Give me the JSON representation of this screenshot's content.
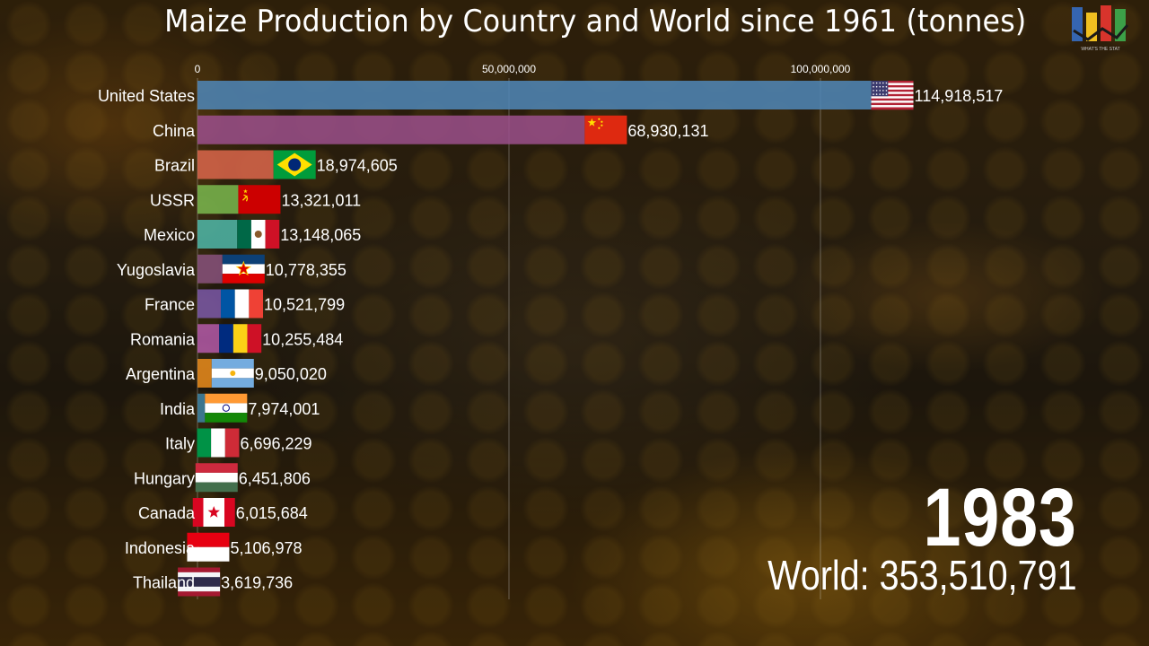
{
  "title": "Maize Production by Country and World since 1961 (tonnes)",
  "year": "1983",
  "world_label": "World: 353,510,791",
  "logo_text": "WHAT'S THE STAT",
  "chart_data": {
    "type": "bar",
    "orientation": "horizontal",
    "title": "Maize Production by Country and World since 1961 (tonnes)",
    "xlim": [
      0,
      115000000
    ],
    "ticks": [
      {
        "value": 0,
        "label": "0"
      },
      {
        "value": 50000000,
        "label": "50,000,000"
      },
      {
        "value": 100000000,
        "label": "100,000,000"
      }
    ],
    "grid": true,
    "bars": [
      {
        "country": "United States",
        "value": 114918517,
        "label": "114,918,517",
        "color": "#4f87b8",
        "flag": "us"
      },
      {
        "country": "China",
        "value": 68930131,
        "label": "68,930,131",
        "color": "#9b4f8a",
        "flag": "cn"
      },
      {
        "country": "Brazil",
        "value": 18974605,
        "label": "18,974,605",
        "color": "#d9654b",
        "flag": "br"
      },
      {
        "country": "USSR",
        "value": 13321011,
        "label": "13,321,011",
        "color": "#7ab84e",
        "flag": "su"
      },
      {
        "country": "Mexico",
        "value": 13148065,
        "label": "13,148,065",
        "color": "#4fb8a8",
        "flag": "mx"
      },
      {
        "country": "Yugoslavia",
        "value": 10778355,
        "label": "10,778,355",
        "color": "#87527c",
        "flag": "yu"
      },
      {
        "country": "France",
        "value": 10521799,
        "label": "10,521,799",
        "color": "#7b58a6",
        "flag": "fr"
      },
      {
        "country": "Romania",
        "value": 10255484,
        "label": "10,255,484",
        "color": "#b35aa8",
        "flag": "ro"
      },
      {
        "country": "Argentina",
        "value": 9050020,
        "label": "9,050,020",
        "color": "#e88a1c",
        "flag": "ar"
      },
      {
        "country": "India",
        "value": 7974001,
        "label": "7,974,001",
        "color": "#3f84a3",
        "flag": "in"
      },
      {
        "country": "Italy",
        "value": 6696229,
        "label": "6,696,229",
        "color": "#e88a12",
        "flag": "it"
      },
      {
        "country": "Hungary",
        "value": 6451806,
        "label": "6,451,806",
        "color": "#6f6a66",
        "flag": "hu"
      },
      {
        "country": "Canada",
        "value": 6015684,
        "label": "6,015,684",
        "color": "#a14a7e",
        "flag": "ca"
      },
      {
        "country": "Indonesia",
        "value": 5106978,
        "label": "5,106,978",
        "color": "#f2b21c",
        "flag": "id"
      },
      {
        "country": "Thailand",
        "value": 3619736,
        "label": "3,619,736",
        "color": "#7ab84e",
        "flag": "th"
      }
    ]
  }
}
